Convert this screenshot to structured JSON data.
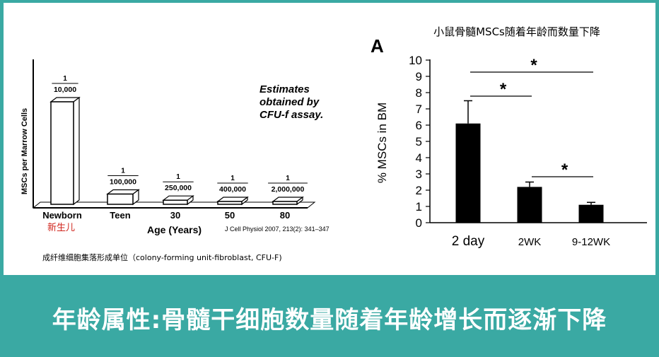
{
  "left_chart": {
    "ylabel": "MSCs per Marrow Cells",
    "annotation_lines": [
      "Estimates",
      "obtained by",
      "CFU-f assay."
    ],
    "xlabel": "Age (Years)",
    "citation": "J Cell Physiol 2007, 213(2): 341–347",
    "newborn_cn": "新生儿",
    "footnote": "成纤维细胞集落形成单位（colony-forming unit-fibroblast, CFU-F)"
  },
  "right_chart": {
    "title": "小鼠骨髓MSCs随着年龄而数量下降",
    "panel_label": "A",
    "significance_marker": "*"
  },
  "banner": {
    "text": "年龄属性:骨髓干细胞数量随着年龄增长而逐渐下降"
  },
  "chart_data": [
    {
      "type": "bar",
      "categories": [
        "Newborn",
        "Teen",
        "30",
        "50",
        "80"
      ],
      "ratio_labels": [
        {
          "num": "1",
          "den": "10,000"
        },
        {
          "num": "1",
          "den": "100,000"
        },
        {
          "num": "1",
          "den": "250,000"
        },
        {
          "num": "1",
          "den": "400,000"
        },
        {
          "num": "1",
          "den": "2,000,000"
        }
      ],
      "values": [
        0.0001,
        1e-05,
        4e-06,
        2.5e-06,
        5e-07
      ],
      "ylabel": "MSCs per Marrow Cells",
      "xlabel": "Age (Years)"
    },
    {
      "type": "bar",
      "categories": [
        "2 day",
        "2WK",
        "9-12WK"
      ],
      "values": [
        6.1,
        2.2,
        1.1
      ],
      "errors": [
        1.4,
        0.3,
        0.15
      ],
      "ylabel": "% MSCs in BM",
      "ylim": [
        0,
        10
      ],
      "yticks": [
        0,
        1,
        2,
        3,
        4,
        5,
        6,
        7,
        8,
        9,
        10
      ],
      "significance": [
        {
          "from": "2 day",
          "to": "9-12WK",
          "label": "*"
        },
        {
          "from": "2 day",
          "to": "2WK",
          "label": "*"
        },
        {
          "from": "2WK",
          "to": "9-12WK",
          "label": "*"
        }
      ]
    }
  ]
}
